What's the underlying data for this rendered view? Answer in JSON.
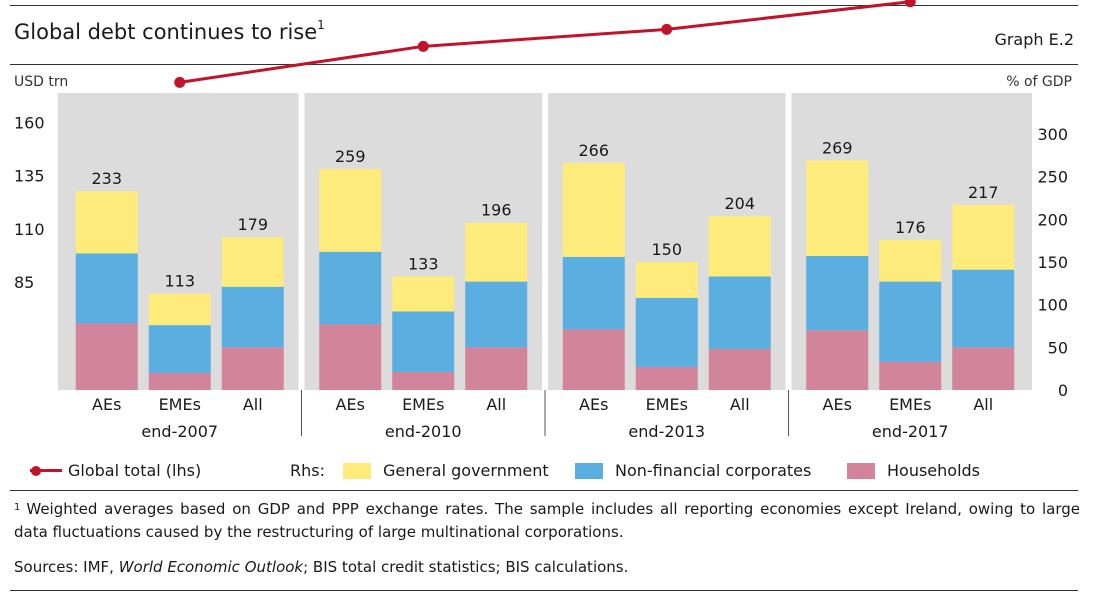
{
  "header": {
    "title": "Global debt continues to rise",
    "title_sup": "1",
    "graph_number": "Graph E.2"
  },
  "axes": {
    "left_unit": "USD trn",
    "right_unit": "% of GDP"
  },
  "colors": {
    "general_government": "#fdeb7c",
    "non_financial_corporates": "#5aaee0",
    "households": "#d2849a",
    "global_total": "#c0142b",
    "plot_background": "#dcdcdc",
    "divider": "#ffffff"
  },
  "legend": {
    "line_label": "Global total (lhs)",
    "rhs_label": "Rhs:",
    "items": [
      "General government",
      "Non-financial corporates",
      "Households"
    ]
  },
  "chart_data": {
    "type": "bar",
    "stacked": true,
    "groups": [
      "end-2007",
      "end-2010",
      "end-2013",
      "end-2017"
    ],
    "categories": [
      "AEs",
      "EMEs",
      "All"
    ],
    "series": [
      {
        "name": "Households",
        "values": [
          [
            78,
            20,
            50
          ],
          [
            77,
            21,
            50
          ],
          [
            71,
            27,
            48
          ],
          [
            70,
            33,
            50
          ]
        ]
      },
      {
        "name": "Non-financial corporates",
        "values": [
          [
            82,
            56,
            71
          ],
          [
            85,
            71,
            77
          ],
          [
            85,
            81,
            85
          ],
          [
            87,
            94,
            91
          ]
        ]
      },
      {
        "name": "General government",
        "values": [
          [
            73,
            37,
            58
          ],
          [
            97,
            41,
            69
          ],
          [
            110,
            42,
            71
          ],
          [
            112,
            49,
            76
          ]
        ]
      }
    ],
    "bar_totals": [
      [
        233,
        113,
        179
      ],
      [
        259,
        133,
        196
      ],
      [
        266,
        150,
        204
      ],
      [
        269,
        176,
        217
      ]
    ],
    "bar_total_labels": [
      [
        "233",
        "113",
        "179"
      ],
      [
        "259",
        "133",
        "196"
      ],
      [
        "266",
        "150",
        "204"
      ],
      [
        "269",
        "176",
        "217"
      ]
    ],
    "line_series": {
      "name": "Global total (lhs)",
      "values": [
        179,
        196,
        204,
        217
      ]
    },
    "y_right": {
      "min": 0,
      "max": 348,
      "ticks": [
        0,
        50,
        100,
        150,
        200,
        250,
        300
      ]
    },
    "y_left": {
      "min": 34,
      "max": 174,
      "ticks": [
        85,
        110,
        135,
        160
      ]
    },
    "y_right_tick_labels": [
      "0",
      "50",
      "100",
      "150",
      "200",
      "250",
      "300"
    ],
    "y_left_tick_labels": [
      "85",
      "110",
      "135",
      "160"
    ]
  },
  "footnote": {
    "marker": "1",
    "text": "Weighted averages based on GDP and PPP exchange rates. The sample includes all reporting economies except Ireland, owing to large data fluctuations caused by the restructuring of large multinational corporations."
  },
  "sources": {
    "prefix": "Sources: IMF, ",
    "italic": "World Economic Outlook",
    "suffix": "; BIS total credit statistics; BIS calculations."
  }
}
